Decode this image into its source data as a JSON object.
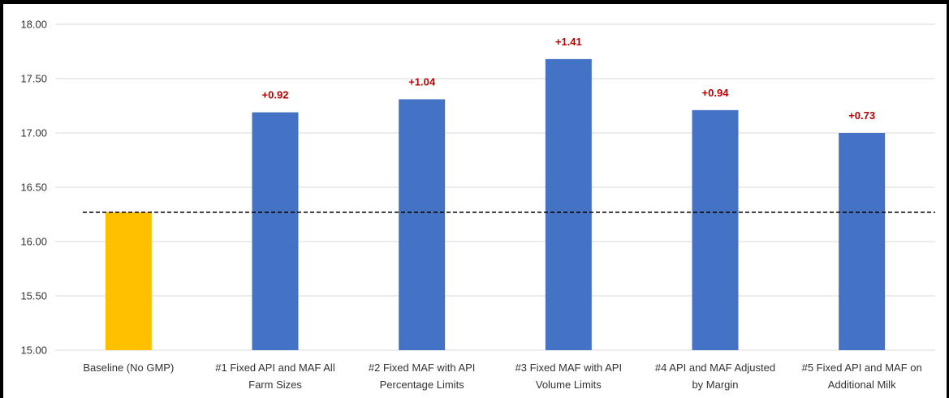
{
  "chart_data": {
    "type": "bar",
    "categories": [
      [
        "Baseline (No GMP)"
      ],
      [
        "#1 Fixed API and MAF All",
        "Farm Sizes"
      ],
      [
        "#2 Fixed MAF with API",
        "Percentage Limits"
      ],
      [
        "#3 Fixed MAF with API",
        "Volume Limits"
      ],
      [
        "#4 API and MAF Adjusted",
        "by Margin"
      ],
      [
        "#5 Fixed API and MAF on",
        "Additional Milk"
      ]
    ],
    "values": [
      16.27,
      17.19,
      17.31,
      17.68,
      17.21,
      17.0
    ],
    "data_labels": [
      "",
      "+0.92",
      "+1.04",
      "+1.41",
      "+0.94",
      "+0.73"
    ],
    "ylim": [
      15.0,
      18.0
    ],
    "yticks": [
      "15.00",
      "15.50",
      "16.00",
      "16.50",
      "17.00",
      "17.50",
      "18.00"
    ],
    "ytick_values": [
      15.0,
      15.5,
      16.0,
      16.5,
      17.0,
      17.5,
      18.0
    ],
    "baseline_value": 16.27,
    "grid": true,
    "colors": {
      "baseline_bar": "#FFC000",
      "bar": "#4472C4",
      "label": "#C00000",
      "grid": "#D9D9D9",
      "reference_line": "#000000"
    }
  }
}
